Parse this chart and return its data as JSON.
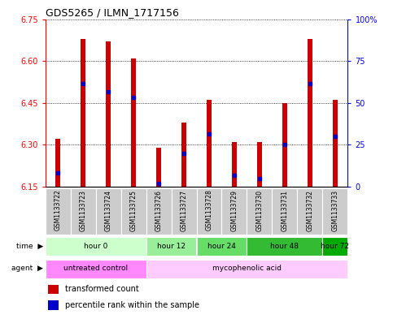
{
  "title": "GDS5265 / ILMN_1717156",
  "samples": [
    "GSM1133722",
    "GSM1133723",
    "GSM1133724",
    "GSM1133725",
    "GSM1133726",
    "GSM1133727",
    "GSM1133728",
    "GSM1133729",
    "GSM1133730",
    "GSM1133731",
    "GSM1133732",
    "GSM1133733"
  ],
  "bar_bottom": 6.15,
  "bar_tops": [
    6.32,
    6.68,
    6.67,
    6.61,
    6.29,
    6.38,
    6.46,
    6.31,
    6.31,
    6.45,
    6.68,
    6.46
  ],
  "percentile_values": [
    6.2,
    6.52,
    6.49,
    6.47,
    6.16,
    6.27,
    6.34,
    6.19,
    6.18,
    6.3,
    6.52,
    6.33
  ],
  "ylim_left": [
    6.15,
    6.75
  ],
  "ylim_right": [
    0,
    100
  ],
  "yticks_left": [
    6.15,
    6.3,
    6.45,
    6.6,
    6.75
  ],
  "yticks_right": [
    0,
    25,
    50,
    75,
    100
  ],
  "ytick_labels_right": [
    "0",
    "25",
    "50",
    "75",
    "100%"
  ],
  "bar_color": "#cc0000",
  "percentile_color": "#0000cc",
  "bar_width": 0.18,
  "time_groups": [
    {
      "label": "hour 0",
      "start": 0,
      "end": 3,
      "color": "#ccffcc"
    },
    {
      "label": "hour 12",
      "start": 4,
      "end": 5,
      "color": "#99ee99"
    },
    {
      "label": "hour 24",
      "start": 6,
      "end": 7,
      "color": "#66dd66"
    },
    {
      "label": "hour 48",
      "start": 8,
      "end": 10,
      "color": "#33bb33"
    },
    {
      "label": "hour 72",
      "start": 11,
      "end": 11,
      "color": "#00aa00"
    }
  ],
  "agent_groups": [
    {
      "label": "untreated control",
      "start": 0,
      "end": 3,
      "color": "#ff88ff"
    },
    {
      "label": "mycophenolic acid",
      "start": 4,
      "end": 11,
      "color": "#ffccff"
    }
  ],
  "legend_items": [
    {
      "label": "transformed count",
      "color": "#cc0000",
      "marker": "s"
    },
    {
      "label": "percentile rank within the sample",
      "color": "#0000cc",
      "marker": "s"
    }
  ]
}
